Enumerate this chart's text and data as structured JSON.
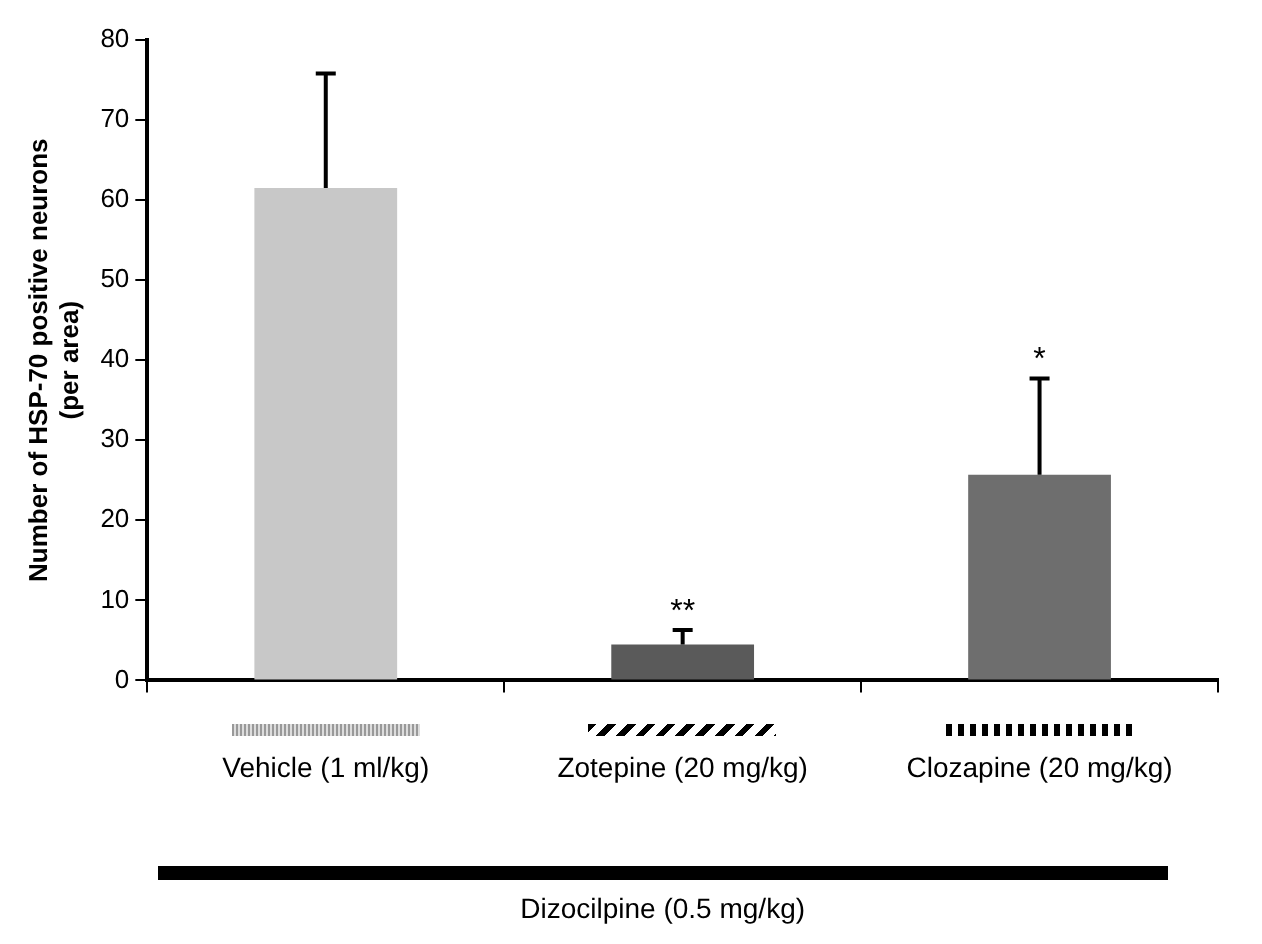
{
  "chart_data": {
    "type": "bar",
    "ylabel": "Number of HSP-70 positive neurons (per area)",
    "categories": [
      "Vehicle (1 ml/kg)",
      "Zotepine (20 mg/kg)",
      "Clozapine (20 mg/kg)"
    ],
    "values": [
      61.5,
      4.5,
      25.7
    ],
    "colors": [
      "#c8c8c8",
      "#5a5a5a",
      "#6e6e6e"
    ],
    "value_labels": [
      null,
      "**",
      "*"
    ],
    "errors": [
      [
        61.5,
        75.8
      ],
      [
        4.5,
        6.3
      ],
      [
        25.7,
        37.7
      ]
    ],
    "ylim": [
      0,
      80
    ],
    "yticks": [
      0,
      10,
      20,
      30,
      40,
      50,
      60,
      70,
      80
    ],
    "grid": false,
    "legend": false,
    "annotations": [
      "Dizocilpine (0.5 mg/kg)"
    ]
  }
}
